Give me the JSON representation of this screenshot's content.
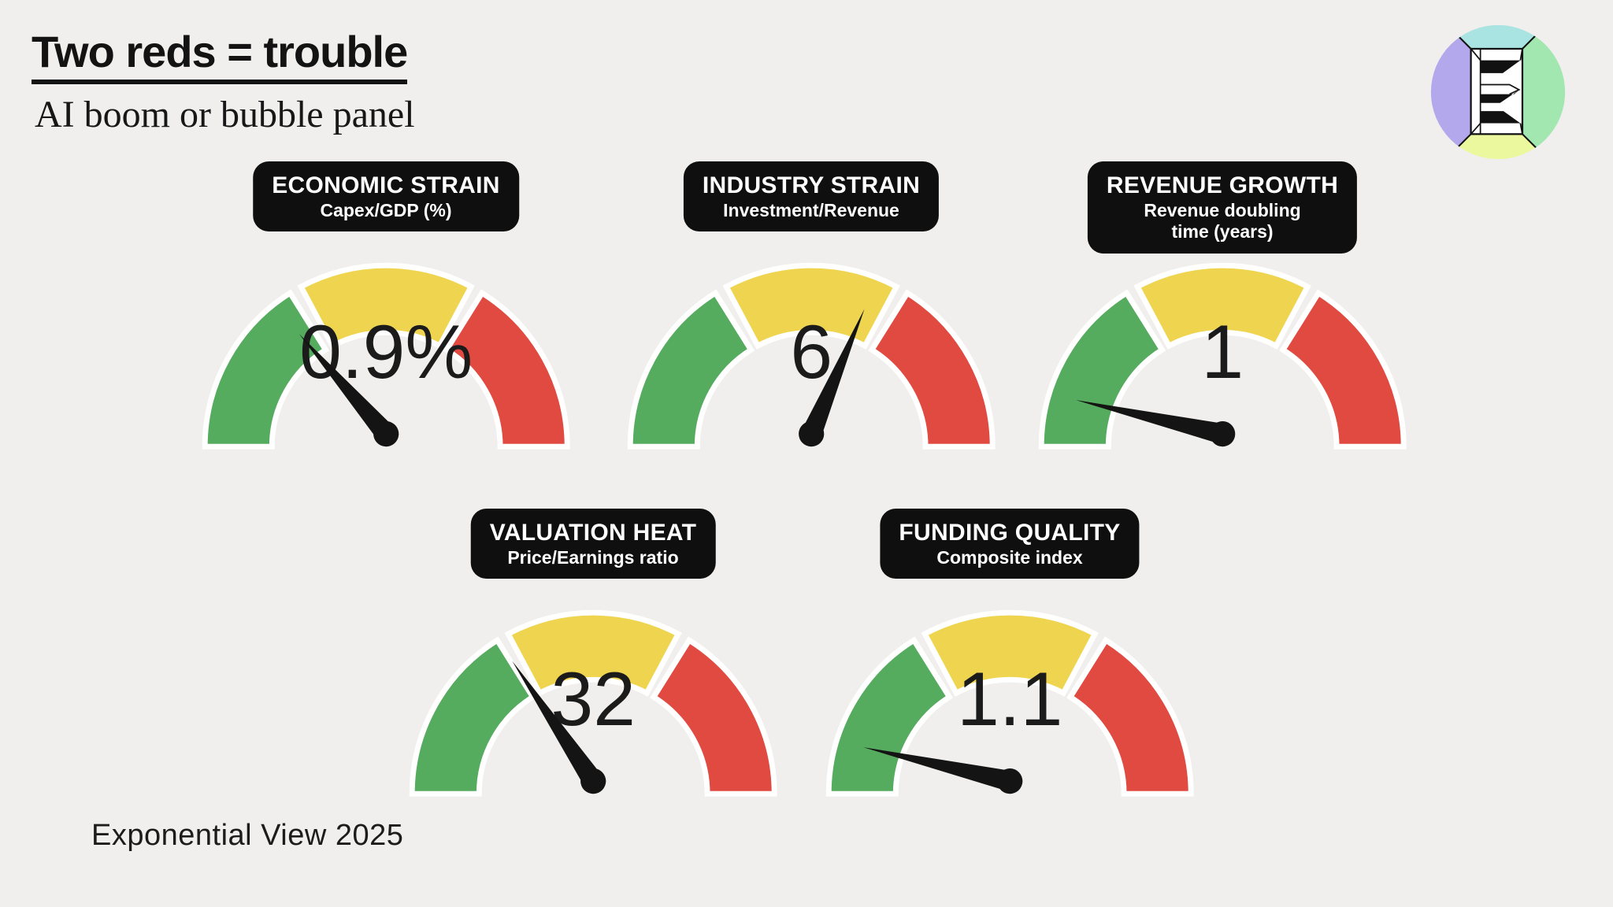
{
  "page": {
    "title": "Two reds = trouble",
    "subtitle": "AI boom or bubble panel",
    "footer": "Exponential View 2025",
    "background_color": "#f0efed"
  },
  "logo": {
    "letter": "E",
    "quadrant_colors": {
      "top": "#a9e3e2",
      "left": "#b3a8eb",
      "right": "#a2e6b0",
      "bottom": "#ebf89e"
    }
  },
  "colors": {
    "zone_green": "#55ab5e",
    "zone_yellow": "#efd54f",
    "zone_red": "#e04a40",
    "label_box": "#0f0f0f",
    "label_text": "#ffffff",
    "needle": "#141414",
    "value_text": "#1b1b1b",
    "gauge_outline": "#ffffff"
  },
  "chart_data": {
    "type": "gauge-panel",
    "description": "Five semicircular traffic-light gauges (green / yellow / red zones, black needle, value in dial center)",
    "zones": [
      {
        "name": "green",
        "from_deg": 180,
        "to_deg": 122
      },
      {
        "name": "yellow",
        "from_deg": 118,
        "to_deg": 62
      },
      {
        "name": "red",
        "from_deg": 58,
        "to_deg": 0
      }
    ],
    "gauges": [
      {
        "id": "economic-strain",
        "title": "ECONOMIC STRAIN",
        "subtitle": "Capex/GDP (%)",
        "value": "0.9%",
        "needle_deg": 131,
        "dial_fraction": 0.27,
        "zone": "green (at yellow boundary)"
      },
      {
        "id": "industry-strain",
        "title": "INDUSTRY STRAIN",
        "subtitle": "Investment/Revenue",
        "value": "6",
        "needle_deg": 67,
        "dial_fraction": 0.63,
        "zone": "yellow (at red boundary)"
      },
      {
        "id": "revenue-growth",
        "title": "REVENUE GROWTH",
        "subtitle": "Revenue doubling\ntime (years)",
        "value": "1",
        "needle_deg": 167,
        "dial_fraction": 0.07,
        "zone": "green"
      },
      {
        "id": "valuation-heat",
        "title": "VALUATION HEAT",
        "subtitle": "Price/Earnings ratio",
        "value": "32",
        "needle_deg": 124,
        "dial_fraction": 0.31,
        "zone": "green (at yellow boundary)"
      },
      {
        "id": "funding-quality",
        "title": "FUNDING QUALITY",
        "subtitle": "Composite index",
        "value": "1.1",
        "needle_deg": 167,
        "dial_fraction": 0.07,
        "zone": "green"
      }
    ]
  }
}
